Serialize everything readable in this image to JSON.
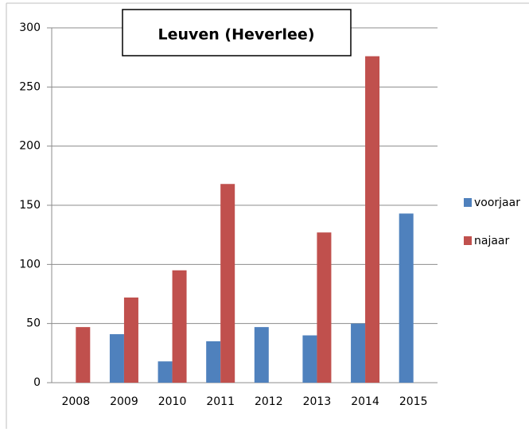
{
  "chart_data": {
    "type": "bar",
    "title": "Leuven (Heverlee)",
    "categories": [
      "2008",
      "2009",
      "2010",
      "2011",
      "2012",
      "2013",
      "2014",
      "2015"
    ],
    "series": [
      {
        "name": "voorjaar",
        "color": "#4f81bd",
        "values": [
          null,
          41,
          18,
          35,
          47,
          40,
          50,
          143
        ]
      },
      {
        "name": "najaar",
        "color": "#c0504d",
        "values": [
          47,
          72,
          95,
          168,
          null,
          127,
          276,
          null
        ]
      }
    ],
    "ylim": [
      0,
      300
    ],
    "yticks": [
      0,
      50,
      100,
      150,
      200,
      250,
      300
    ],
    "grid": true,
    "legend": "right"
  }
}
